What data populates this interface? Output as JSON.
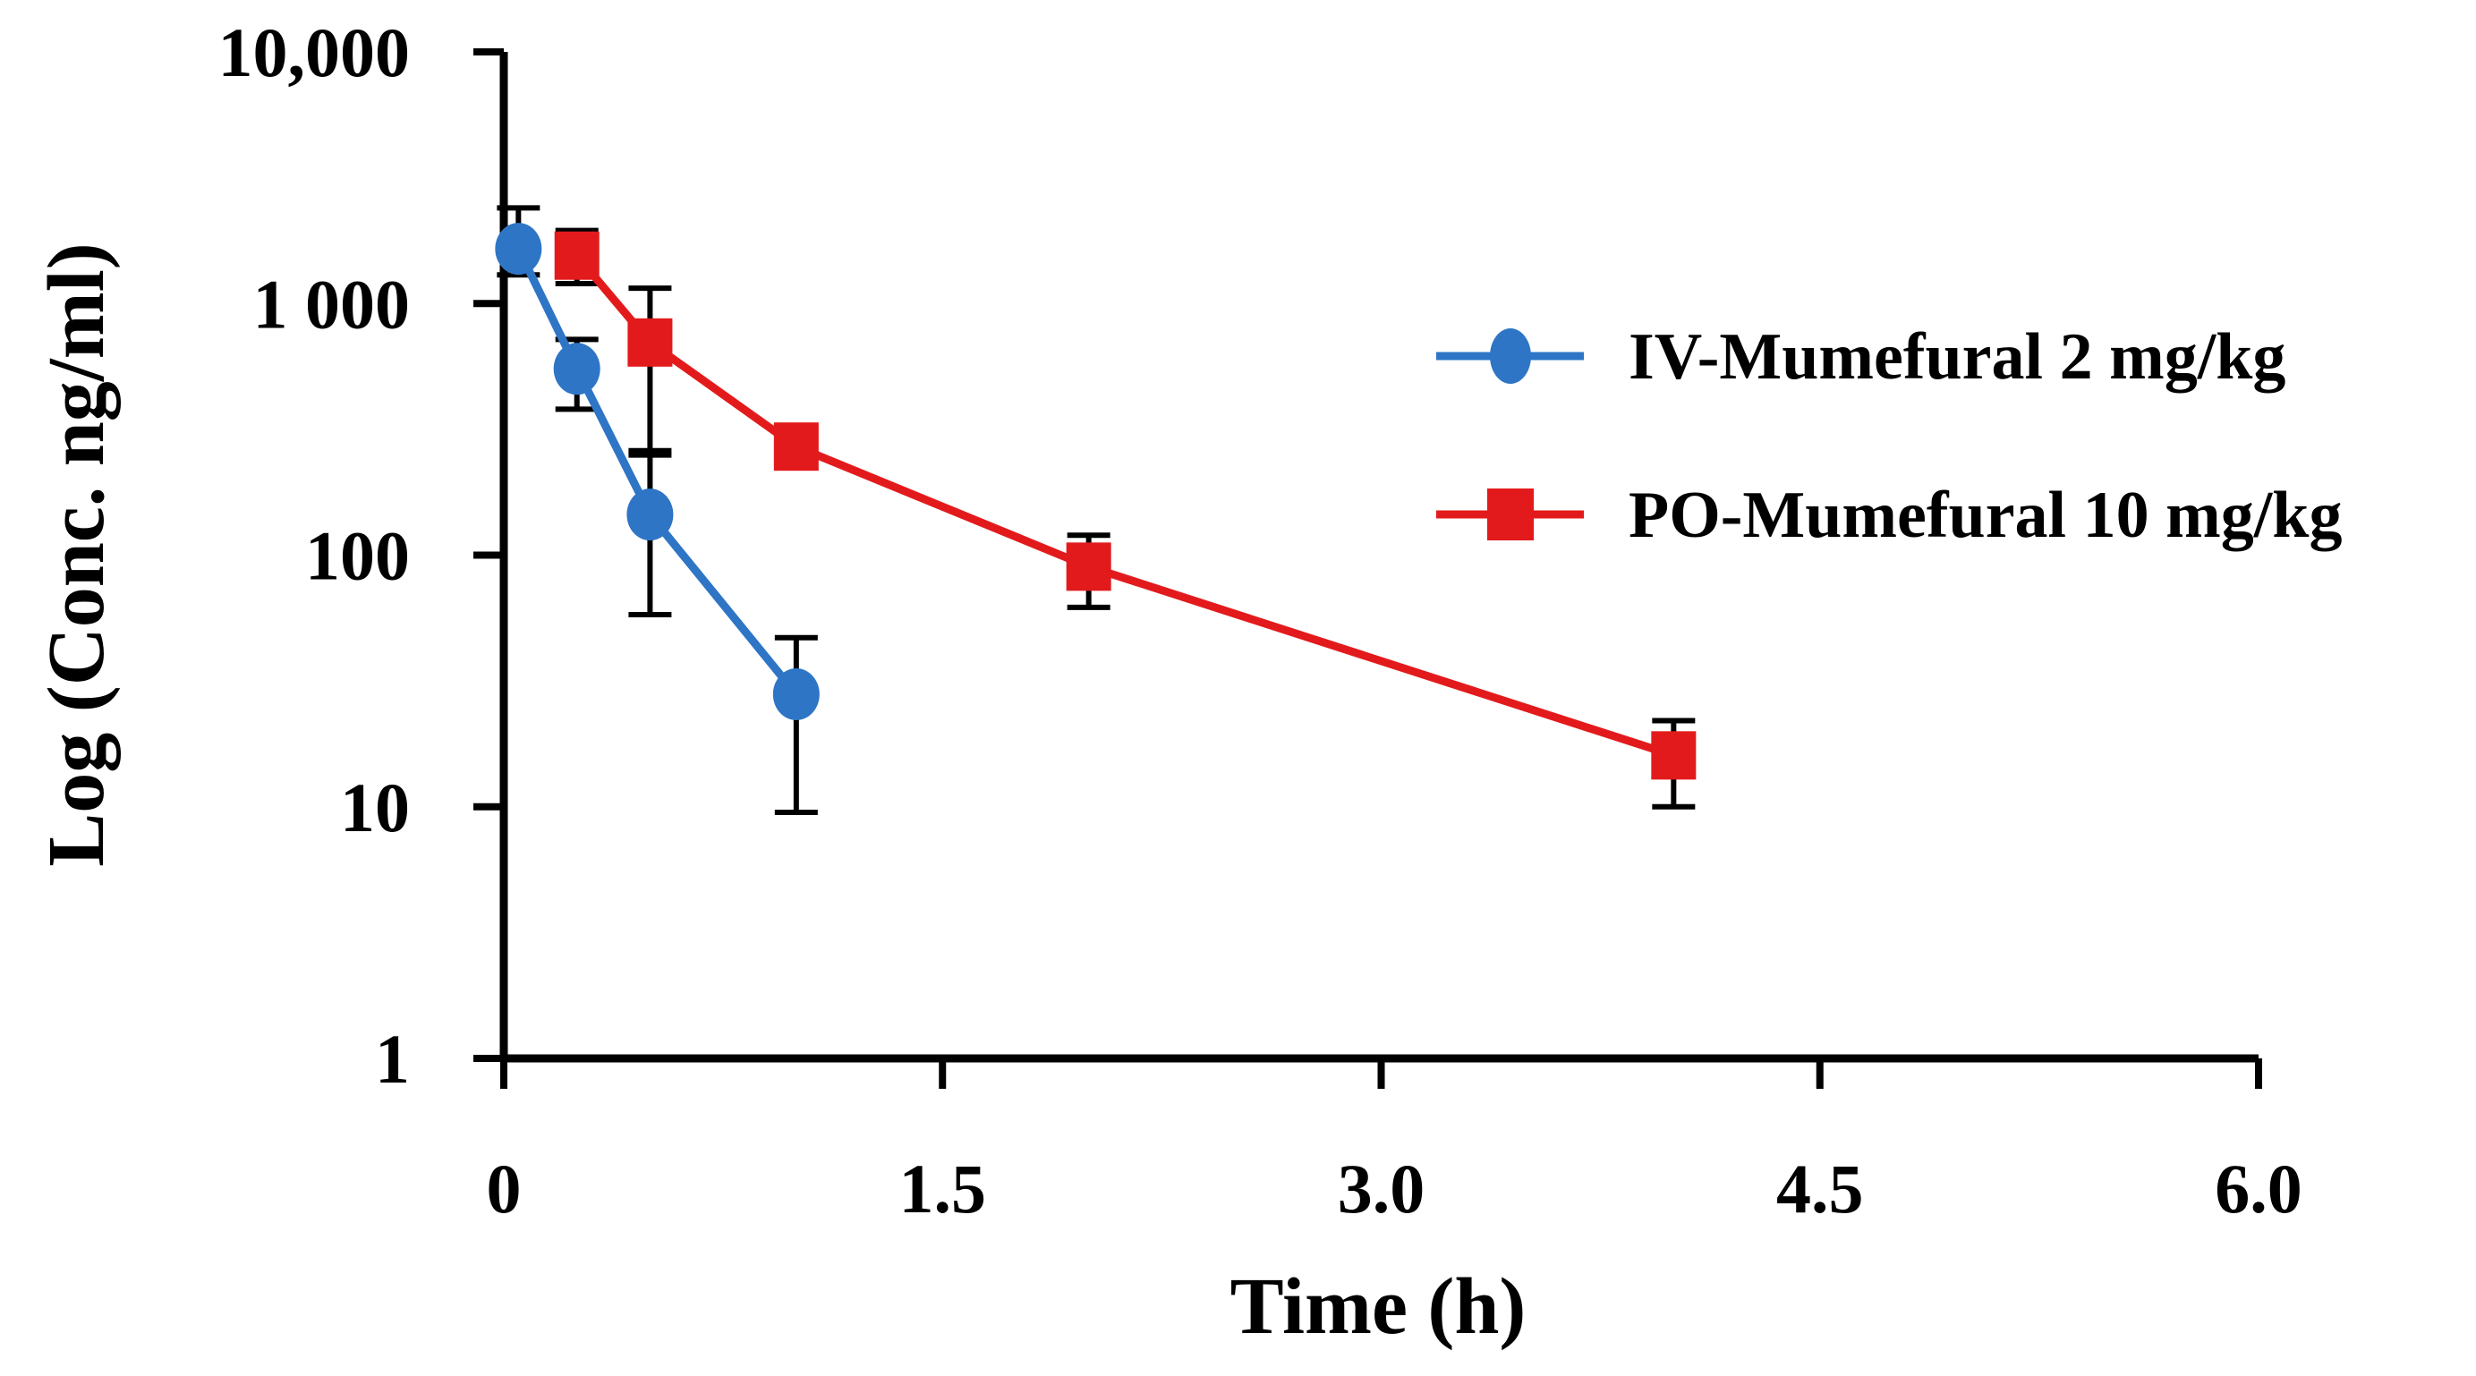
{
  "chart_data": {
    "type": "line",
    "title": "",
    "xlabel": "Time (h)",
    "ylabel": "Log (Conc. ng/ml)",
    "x_scale": "linear",
    "y_scale": "log",
    "xlim": [
      0,
      6
    ],
    "ylim": [
      1,
      10000
    ],
    "x_ticks": [
      {
        "value": 0,
        "label": "0"
      },
      {
        "value": 1.5,
        "label": "1.5"
      },
      {
        "value": 3.0,
        "label": "3.0"
      },
      {
        "value": 4.5,
        "label": "4.5"
      },
      {
        "value": 6.0,
        "label": "6.0"
      }
    ],
    "y_ticks": [
      {
        "value": 1,
        "label": "1"
      },
      {
        "value": 10,
        "label": "10"
      },
      {
        "value": 100,
        "label": "100"
      },
      {
        "value": 1000,
        "label": "1 000"
      },
      {
        "value": 10000,
        "label": "10,000"
      }
    ],
    "legend_position": "right",
    "series": [
      {
        "name": "IV-Mumefural 2 mg/kg",
        "color": "#2e75c6",
        "marker": "circle",
        "x": [
          0.05,
          0.25,
          0.5,
          1.0
        ],
        "y": [
          1650,
          550,
          145,
          28
        ],
        "err_low": [
          1300,
          380,
          58,
          9.5
        ],
        "err_high": [
          2400,
          720,
          250,
          47
        ]
      },
      {
        "name": "PO-Mumefural 10 mg/kg",
        "color": "#e31a1c",
        "marker": "square",
        "x": [
          0.25,
          0.5,
          1.0,
          2.0,
          4.0
        ],
        "y": [
          1550,
          700,
          270,
          90,
          16
        ],
        "err_low": [
          1200,
          260,
          255,
          62,
          10
        ],
        "err_high": [
          1950,
          1150,
          290,
          120,
          22
        ]
      }
    ]
  }
}
